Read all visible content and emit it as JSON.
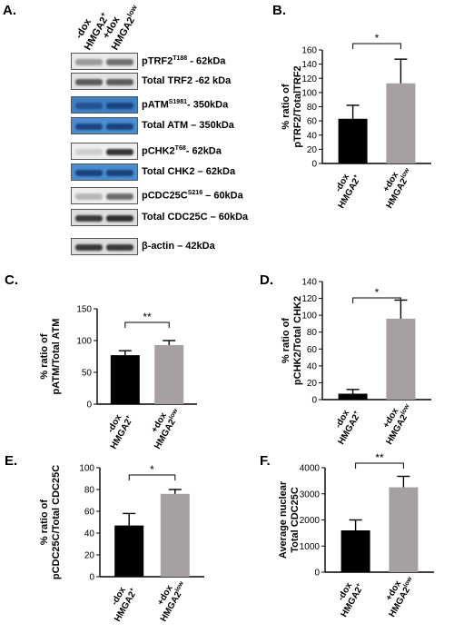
{
  "panel_letters": {
    "A": "A.",
    "B": "B.",
    "C": "C.",
    "D": "D.",
    "E": "E.",
    "F": "F."
  },
  "blot": {
    "lane_headers": [
      {
        "line1": "-dox",
        "line2": "HMGA2",
        "sup": "+"
      },
      {
        "line1": "+dox",
        "line2": "HMGA2",
        "sup": "low"
      }
    ],
    "rows": [
      {
        "label": "pTRF2",
        "sup": "T188",
        "suffix": " - 62kDa",
        "bg": "#e9e9e9",
        "band": "#5a5a5a",
        "lane1": 0.55,
        "lane2": 0.85
      },
      {
        "label": "Total TRF2",
        "sup": "",
        "suffix": " -62 kDa",
        "bg": "#e3e3e3",
        "band": "#3a3a3a",
        "lane1": 0.8,
        "lane2": 0.8
      },
      {
        "label": "pATM",
        "sup": "S1981",
        "suffix": "- 350kDa",
        "bg": "#3f7fc4",
        "band": "#0e2f66",
        "lane1": 0.55,
        "lane2": 0.75
      },
      {
        "label": "Total ATM",
        "sup": "",
        "suffix": " – 350kDa",
        "bg": "#4a8cd0",
        "band": "#0e2f66",
        "lane1": 0.75,
        "lane2": 0.8
      },
      {
        "label": "pCHK2",
        "sup": "T68",
        "suffix": "- 62kDa",
        "bg": "#eeeeee",
        "band": "#202020",
        "lane1": 0.15,
        "lane2": 0.9
      },
      {
        "label": "Total CHK2",
        "sup": "",
        "suffix": " – 62kDa",
        "bg": "#4a8cd0",
        "band": "#0e2f66",
        "lane1": 0.8,
        "lane2": 0.8
      },
      {
        "label": "pCDC25C",
        "sup": "S216",
        "suffix": " – 60kDa",
        "bg": "#eeeeee",
        "band": "#3a3a3a",
        "lane1": 0.3,
        "lane2": 0.7
      },
      {
        "label": "Total CDC25C",
        "sup": "",
        "suffix": " – 60kDa",
        "bg": "#dedede",
        "band": "#1c1c1c",
        "lane1": 0.85,
        "lane2": 0.9
      },
      {
        "label": "β-actin",
        "sup": "",
        "suffix": " – 42kDa",
        "bg": "#dddddd",
        "band": "#1c1c1c",
        "lane1": 0.85,
        "lane2": 0.85
      }
    ]
  },
  "chart_data": [
    {
      "id": "B",
      "type": "bar",
      "categories": [
        {
          "line1": "-dox",
          "line2": "HMGA2",
          "sup": "+"
        },
        {
          "line1": "+dox",
          "line2": "HMGA2",
          "sup": "low"
        }
      ],
      "values": [
        63,
        113
      ],
      "errors": [
        19,
        34
      ],
      "colors": [
        "#000000",
        "#a6a0a0"
      ],
      "ylabel_lines": [
        "% ratio of",
        "pTRF2/TotalTRF2"
      ],
      "ylim": [
        0,
        160
      ],
      "yticks": [
        0,
        20,
        40,
        60,
        80,
        100,
        120,
        140,
        160
      ],
      "significance": "*"
    },
    {
      "id": "C",
      "type": "bar",
      "categories": [
        {
          "line1": "-dox",
          "line2": "HMGA2",
          "sup": "+"
        },
        {
          "line1": "+dox",
          "line2": "HMGA2",
          "sup": "low"
        }
      ],
      "values": [
        77,
        93
      ],
      "errors": [
        7,
        7
      ],
      "colors": [
        "#000000",
        "#a6a0a0"
      ],
      "ylabel_lines": [
        "% ratio of",
        "pATM/Total ATM"
      ],
      "ylim": [
        0,
        150
      ],
      "yticks": [
        0,
        50,
        100,
        150
      ],
      "significance": "**"
    },
    {
      "id": "D",
      "type": "bar",
      "categories": [
        {
          "line1": "-dox",
          "line2": "HMGA2",
          "sup": "+"
        },
        {
          "line1": "+dox",
          "line2": "HMGA2",
          "sup": "low"
        }
      ],
      "values": [
        7,
        96
      ],
      "errors": [
        5,
        22
      ],
      "colors": [
        "#000000",
        "#a6a0a0"
      ],
      "ylabel_lines": [
        "% ratio of",
        "pCHK2/Total CHK2"
      ],
      "ylim": [
        0,
        140
      ],
      "yticks": [
        0,
        20,
        40,
        60,
        80,
        100,
        120,
        140
      ],
      "significance": "*"
    },
    {
      "id": "E",
      "type": "bar",
      "categories": [
        {
          "line1": "-dox",
          "line2": "HMGA2",
          "sup": "+"
        },
        {
          "line1": "+dox",
          "line2": "HMGA2",
          "sup": "low"
        }
      ],
      "values": [
        47,
        76
      ],
      "errors": [
        11,
        4
      ],
      "colors": [
        "#000000",
        "#a6a0a0"
      ],
      "ylabel_lines": [
        "% ratio of",
        "pCDC25C/Total CDC25C"
      ],
      "ylim": [
        0,
        100
      ],
      "yticks": [
        0,
        20,
        40,
        60,
        80,
        100
      ],
      "significance": "*"
    },
    {
      "id": "F",
      "type": "bar",
      "categories": [
        {
          "line1": "-dox",
          "line2": "HMGA2",
          "sup": "+"
        },
        {
          "line1": "+dox",
          "line2": "HMGA2",
          "sup": "low"
        }
      ],
      "values": [
        1600,
        3250
      ],
      "errors": [
        400,
        420
      ],
      "colors": [
        "#000000",
        "#a6a0a0"
      ],
      "ylabel_lines": [
        "Average nuclear",
        "Total CDC25C"
      ],
      "ylim": [
        0,
        4000
      ],
      "yticks": [
        0,
        1000,
        2000,
        3000,
        4000
      ],
      "significance": "**"
    }
  ]
}
